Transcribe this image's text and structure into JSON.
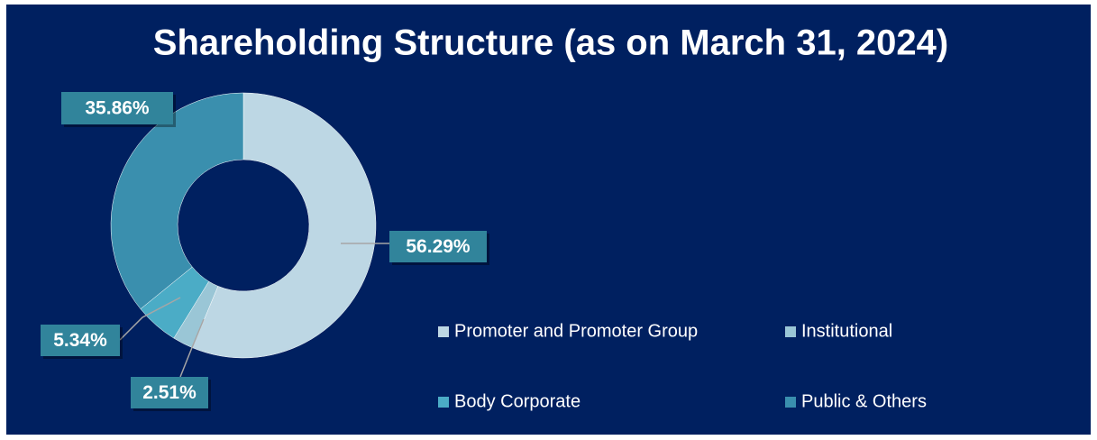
{
  "chart_data": {
    "type": "donut",
    "title": "Shareholding Structure (as on March 31, 2024)",
    "categories": [
      "Promoter and Promoter Group",
      "Institutional",
      "Body Corporate",
      "Public & Others"
    ],
    "values": [
      56.29,
      2.51,
      5.34,
      35.86
    ],
    "value_labels": [
      "56.29%",
      "2.51%",
      "5.34%",
      "35.86%"
    ],
    "colors": [
      "#bdd7e4",
      "#9ac6d6",
      "#4bacc6",
      "#3a8fae"
    ],
    "legend": "bottom-right"
  }
}
